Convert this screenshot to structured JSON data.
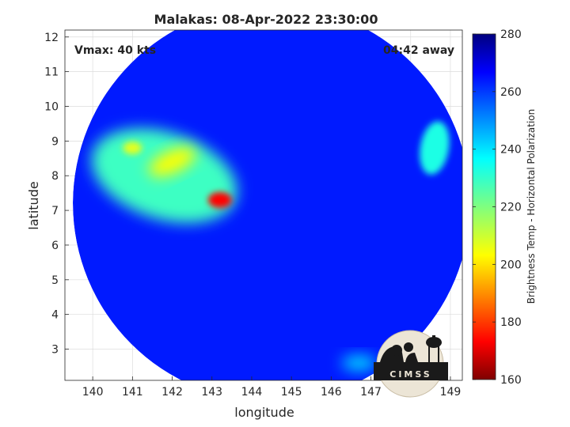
{
  "chart_data": {
    "type": "heatmap",
    "title": "Malakas: 08-Apr-2022 23:30:00",
    "xlabel": "longitude",
    "ylabel": "latitude",
    "xlim": [
      139.3,
      149.3
    ],
    "ylim": [
      2.1,
      12.2
    ],
    "xticks": [
      "140",
      "141",
      "142",
      "143",
      "144",
      "145",
      "146",
      "147",
      "148",
      "149"
    ],
    "yticks": [
      "3",
      "4",
      "5",
      "6",
      "7",
      "8",
      "9",
      "10",
      "11",
      "12"
    ],
    "grid": true,
    "annotations": {
      "vmax": "Vmax: 40 kts",
      "away": "04:42 away"
    },
    "colorbar": {
      "label": "Brightness Temp - Horizontal Polarization",
      "min": 160,
      "max": 280,
      "ticks": [
        "160",
        "180",
        "200",
        "220",
        "240",
        "260",
        "280"
      ],
      "colormap": "jet"
    },
    "swath": {
      "center_lon": 144.5,
      "center_lat": 7.2,
      "radius_deg": 5.0
    },
    "background_value": 262,
    "features": [
      {
        "name": "northwest-cloud-band",
        "lon": 141.8,
        "lat": 8.0,
        "value": 228
      },
      {
        "name": "cold-convective-core",
        "lon": 143.2,
        "lat": 7.3,
        "value": 175
      },
      {
        "name": "cold-cloud-cluster-a",
        "lon": 142.0,
        "lat": 8.4,
        "value": 205
      },
      {
        "name": "cold-cloud-cluster-b",
        "lon": 141.0,
        "lat": 8.8,
        "value": 208
      },
      {
        "name": "eastern-cloud-patch",
        "lon": 148.6,
        "lat": 8.8,
        "value": 232
      },
      {
        "name": "southeast-cloud-patch",
        "lon": 146.7,
        "lat": 2.6,
        "value": 240
      }
    ],
    "logo": {
      "text": "CIMSS"
    }
  }
}
